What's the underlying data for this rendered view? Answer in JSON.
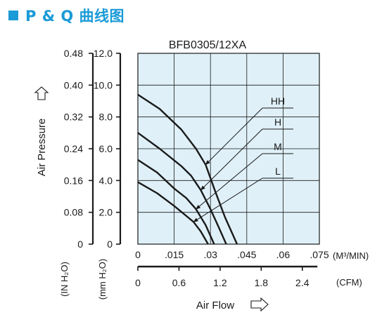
{
  "heading": {
    "title": "P & Q 曲线图",
    "accent_color": "#1a9ad6"
  },
  "chart_data": {
    "type": "line",
    "title": "BFB0305/12XA",
    "xlabel": "Air Flow",
    "ylabel": "Air Pressure",
    "xlim": [
      0,
      0.075
    ],
    "ylim": [
      0,
      12.0
    ],
    "grid": true,
    "plot_background": "#dff0f8",
    "axes": {
      "x_primary": {
        "unit": "(M³/MIN)",
        "ticks": [
          0,
          0.015,
          0.03,
          0.045,
          0.06,
          0.075
        ],
        "tick_labels": [
          "0",
          ".015",
          ".03",
          ".045",
          ".06",
          ".075"
        ]
      },
      "x_secondary": {
        "unit": "(CFM)",
        "ticks": [
          0,
          0.6,
          1.2,
          1.8,
          2.4
        ],
        "tick_labels": [
          "0",
          "0.6",
          "1.2",
          "1.8",
          "2.4"
        ]
      },
      "y_primary": {
        "unit": "(mm H₂O)",
        "ticks": [
          0,
          2.0,
          4.0,
          6.0,
          8.0,
          10.0,
          12.0
        ],
        "tick_labels": [
          "0",
          "2.0",
          "4.0",
          "6.0",
          "8.0",
          "10.0",
          "12.0"
        ]
      },
      "y_secondary": {
        "unit": "(IN H₂O)",
        "ticks": [
          0,
          0.08,
          0.16,
          0.24,
          0.32,
          0.4,
          0.48
        ],
        "tick_labels": [
          "0",
          "0.08",
          "0.16",
          "0.24",
          "0.32",
          "0.40",
          "0.48"
        ]
      }
    },
    "series": [
      {
        "name": "HH",
        "x": [
          0,
          0.009,
          0.018,
          0.024,
          0.028,
          0.032,
          0.036,
          0.041
        ],
        "y": [
          9.4,
          8.5,
          7.2,
          6.0,
          5.0,
          3.3,
          1.7,
          0
        ]
      },
      {
        "name": "H",
        "x": [
          0,
          0.009,
          0.018,
          0.022,
          0.026,
          0.03,
          0.033,
          0.0365
        ],
        "y": [
          7.0,
          6.0,
          4.9,
          4.3,
          3.4,
          2.2,
          1.2,
          0
        ]
      },
      {
        "name": "M",
        "x": [
          0,
          0.008,
          0.015,
          0.02,
          0.024,
          0.028,
          0.0315
        ],
        "y": [
          5.3,
          4.5,
          3.5,
          2.9,
          2.2,
          1.2,
          0
        ]
      },
      {
        "name": "L",
        "x": [
          0,
          0.008,
          0.015,
          0.019,
          0.023,
          0.026,
          0.029
        ],
        "y": [
          3.9,
          3.2,
          2.4,
          1.9,
          1.4,
          0.8,
          0
        ]
      }
    ]
  }
}
